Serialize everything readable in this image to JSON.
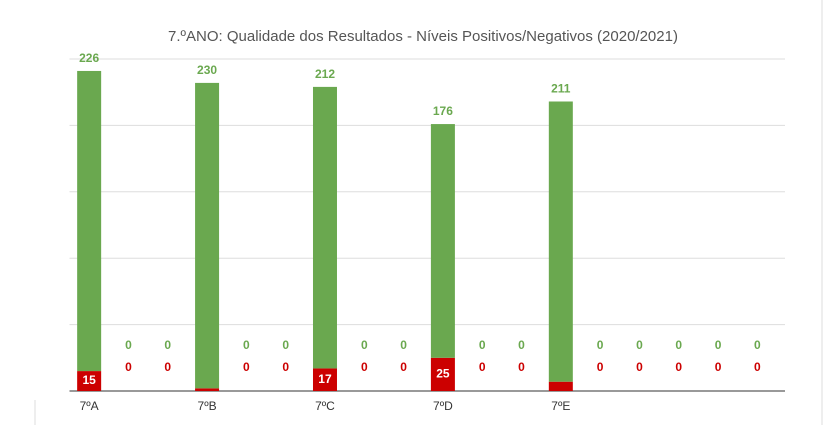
{
  "chart_data": {
    "type": "stacked_bar",
    "title": "7.ºANO: Qualidade dos Resultados - Níveis Positivos/Negativos (2020/2021)",
    "categories": [
      "7ºA",
      null,
      null,
      "7ºB",
      null,
      null,
      "7ºC",
      null,
      null,
      "7ºD",
      null,
      null,
      "7ºE",
      null,
      null,
      null,
      null,
      null
    ],
    "series": [
      {
        "color": "#cc0000",
        "values": [
          15,
          0,
          0,
          2,
          0,
          0,
          17,
          0,
          0,
          25,
          0,
          0,
          7,
          0,
          0,
          0,
          0,
          0
        ]
      },
      {
        "color": "#6aa84f",
        "values": [
          226,
          0,
          0,
          230,
          0,
          0,
          212,
          0,
          0,
          176,
          0,
          0,
          211,
          0,
          0,
          0,
          0,
          0
        ]
      }
    ],
    "ylim": [
      0,
      250
    ],
    "yticks": [
      0,
      50,
      100,
      150,
      200,
      250
    ],
    "grid": true
  }
}
